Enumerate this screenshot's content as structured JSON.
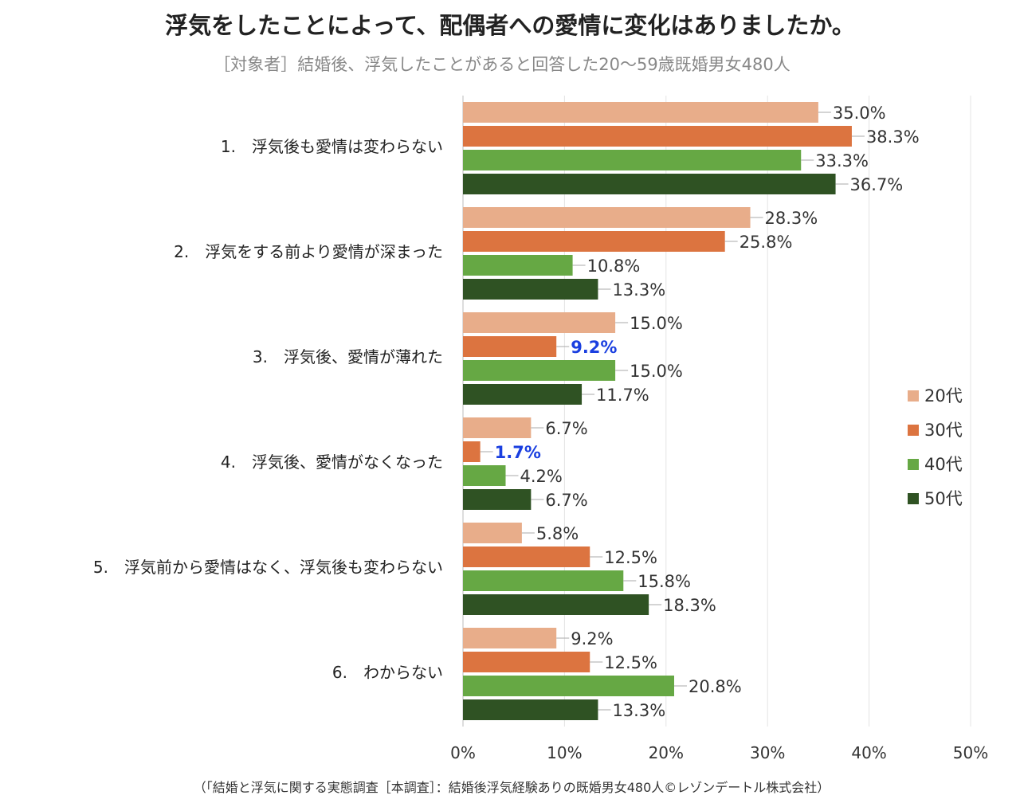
{
  "chart_data": {
    "type": "bar",
    "orientation": "horizontal",
    "title": "浮気をしたことによって、配偶者への愛情に変化はありましたか。",
    "subtitle": "［対象者］結婚後、浮気したことがあると回答した20～59歳既婚男女480人",
    "footer": "（「結婚と浮気に関する実態調査［本調査］：結婚後浮気経験ありの既婚男女480人©レゾンデートル株式会社）",
    "categories": [
      "1.　浮気後も愛情は変わらない",
      "2.　浮気をする前より愛情が深まった",
      "3.　浮気後、愛情が薄れた",
      "4.　浮気後、愛情がなくなった",
      "5.　浮気前から愛情はなく、浮気後も変わらない",
      "6.　わからない"
    ],
    "series": [
      {
        "name": "20代",
        "color": "#e8ad8a",
        "values": [
          35.0,
          28.3,
          15.0,
          6.7,
          5.8,
          9.2
        ]
      },
      {
        "name": "30代",
        "color": "#dc7440",
        "values": [
          38.3,
          25.8,
          9.2,
          1.7,
          12.5,
          12.5
        ]
      },
      {
        "name": "40代",
        "color": "#66a844",
        "values": [
          33.3,
          10.8,
          15.0,
          4.2,
          15.8,
          20.8
        ]
      },
      {
        "name": "50代",
        "color": "#2f5223",
        "values": [
          36.7,
          13.3,
          11.7,
          6.7,
          18.3,
          13.3
        ]
      }
    ],
    "value_labels": {
      "20代": [
        "35.0%",
        "28.3%",
        "15.0%",
        "6.7%",
        "5.8%",
        "9.2%"
      ],
      "30代": [
        "38.3%",
        "25.8%",
        "9.2%",
        "1.7%",
        "12.5%",
        "12.5%"
      ],
      "40代": [
        "33.3%",
        "10.8%",
        "15.0%",
        "4.2%",
        "15.8%",
        "20.8%"
      ],
      "50代": [
        "36.7%",
        "13.3%",
        "11.7%",
        "6.7%",
        "18.3%",
        "13.3%"
      ]
    },
    "highlighted_labels": [
      {
        "series": "30代",
        "category_index": 2
      },
      {
        "series": "30代",
        "category_index": 3
      }
    ],
    "highlight_color": "#1a3fe0",
    "xlim": [
      0,
      50
    ],
    "xticks": [
      "0%",
      "10%",
      "20%",
      "30%",
      "40%",
      "50%"
    ],
    "grid": true,
    "legend_position": "right"
  }
}
